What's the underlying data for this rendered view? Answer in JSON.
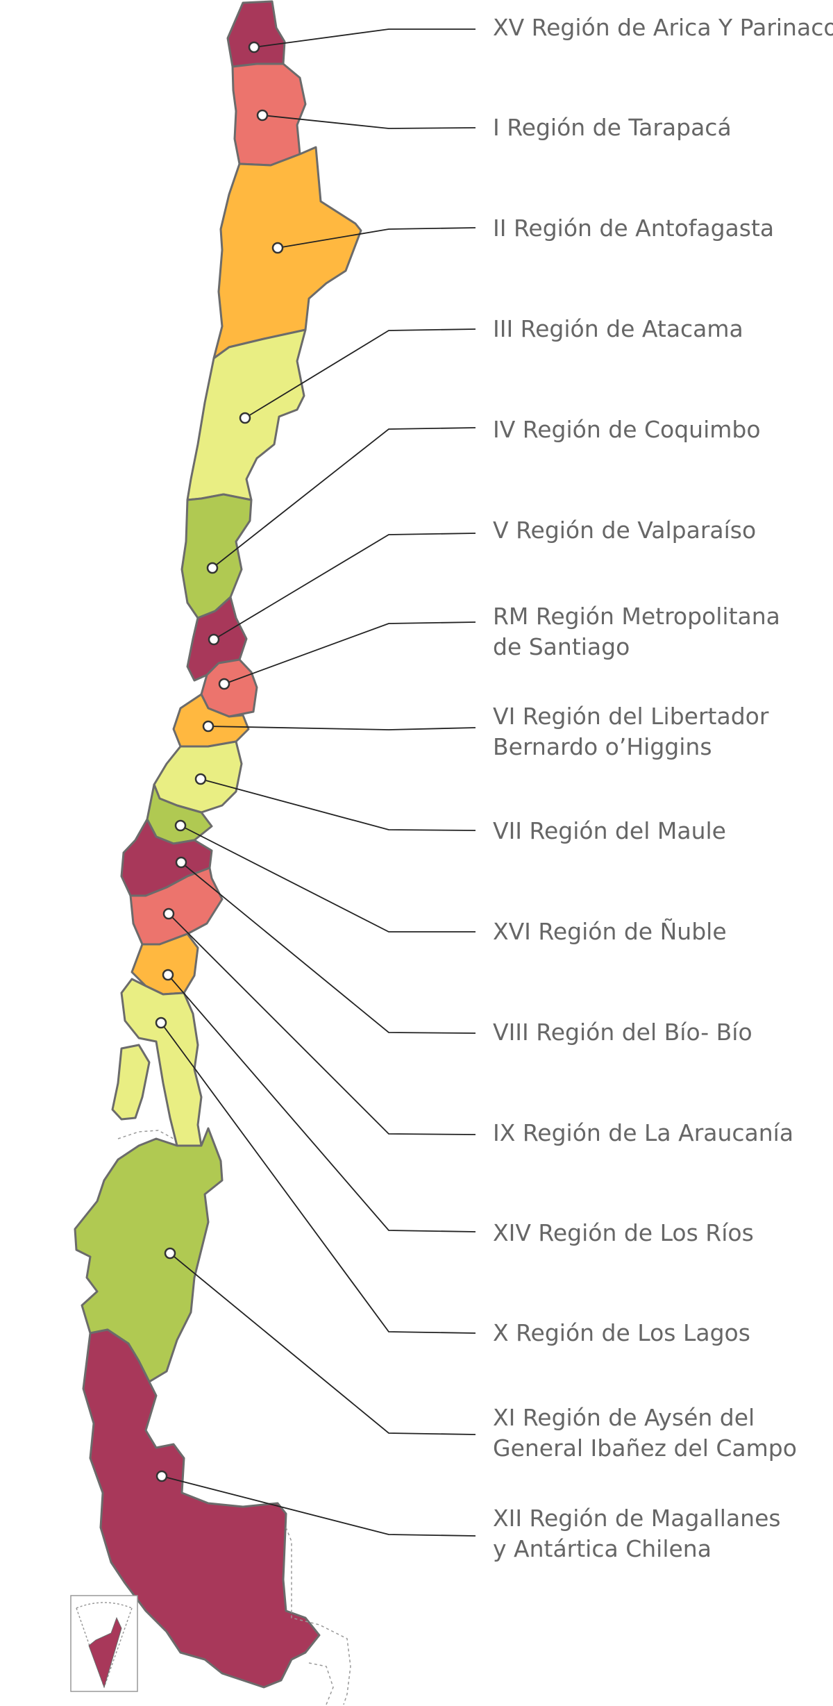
{
  "colors": {
    "crimson": "#A8385A",
    "salmon": "#EC746D",
    "orange": "#FFB840",
    "pale_yellow": "#E9EE83",
    "green": "#B0C952",
    "border": "#6B6B6B",
    "text": "#666666"
  },
  "regions": [
    {
      "lines": [
        "XV Región de Arica Y Parinacota"
      ],
      "color": "#A8385A"
    },
    {
      "lines": [
        "I Región de Tarapacá"
      ],
      "color": "#EC746D"
    },
    {
      "lines": [
        "II Región de Antofagasta"
      ],
      "color": "#FFB840"
    },
    {
      "lines": [
        "III Región de Atacama"
      ],
      "color": "#E9EE83"
    },
    {
      "lines": [
        "IV Región de Coquimbo"
      ],
      "color": "#B0C952"
    },
    {
      "lines": [
        "V Región de Valparaíso"
      ],
      "color": "#A8385A"
    },
    {
      "lines": [
        "RM Región Metropolitana",
        "de Santiago"
      ],
      "color": "#EC746D"
    },
    {
      "lines": [
        "VI Región del Libertador",
        "Bernardo o’Higgins"
      ],
      "color": "#FFB840"
    },
    {
      "lines": [
        "VII Región del Maule"
      ],
      "color": "#E9EE83"
    },
    {
      "lines": [
        "XVI Región de Ñuble"
      ],
      "color": "#B0C952"
    },
    {
      "lines": [
        "VIII Región del Bío- Bío"
      ],
      "color": "#A8385A"
    },
    {
      "lines": [
        "IX Región de La Araucanía"
      ],
      "color": "#EC746D"
    },
    {
      "lines": [
        "XIV Región de Los Ríos"
      ],
      "color": "#FFB840"
    },
    {
      "lines": [
        "X Región de Los Lagos"
      ],
      "color": "#E9EE83"
    },
    {
      "lines": [
        "XI Región de Aysén del",
        "General Ibañez del Campo"
      ],
      "color": "#B0C952"
    },
    {
      "lines": [
        "XII Región de Magallanes",
        "y Antártica Chilena"
      ],
      "color": "#A8385A"
    }
  ]
}
